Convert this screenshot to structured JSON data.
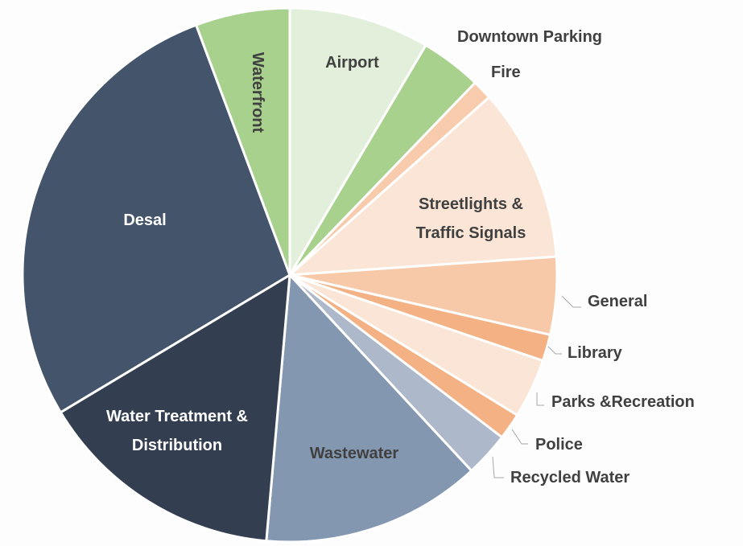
{
  "chart_data": {
    "type": "pie",
    "categories": [
      "Airport",
      "Downtown Parking",
      "Fire",
      "Streetlights & Traffic Signals",
      "General",
      "Library",
      "Parks &Recreation",
      "Police",
      "Recycled Water",
      "Wastewater",
      "Water Treatment & Distribution",
      "Desal",
      "Waterfront"
    ],
    "values": [
      8.5,
      3.7,
      1.2,
      10.5,
      4.7,
      1.6,
      3.6,
      1.6,
      2.7,
      13.3,
      15.0,
      27.9,
      5.7
    ],
    "colors": [
      "#e2efda",
      "#a9d18e",
      "#f8cbad",
      "#fbe5d6",
      "#f7c9a8",
      "#f4b183",
      "#fbe5d6",
      "#f4b183",
      "#adb9ca",
      "#8497b0",
      "#333f50",
      "#44546a",
      "#a9d18e"
    ]
  }
}
